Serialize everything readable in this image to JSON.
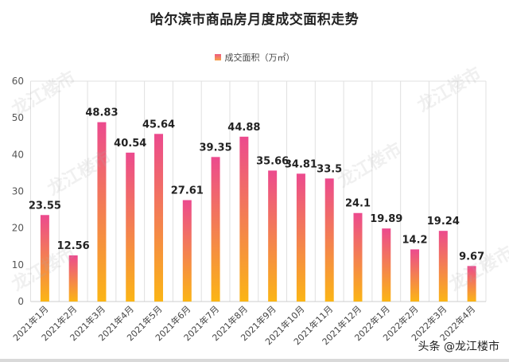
{
  "chart_data": {
    "type": "bar",
    "title": "哈尔滨市商品房月度成交面积走势",
    "legend": [
      "成交面积（万㎡）"
    ],
    "legend_position": "top",
    "xlabel": "",
    "ylabel": "",
    "ylim": [
      0,
      60
    ],
    "yticks": [
      0,
      10,
      20,
      30,
      40,
      50,
      60
    ],
    "grid": "vertical",
    "categories": [
      "2021年1月",
      "2021年2月",
      "2021年3月",
      "2021年4月",
      "2021年5月",
      "2021年6月",
      "2021年7月",
      "2021年8月",
      "2021年9月",
      "2021年10月",
      "2021年11月",
      "2021年12月",
      "2022年1月",
      "2022年2月",
      "2022年3月",
      "2022年4月"
    ],
    "series": [
      {
        "name": "成交面积（万㎡）",
        "values": [
          23.55,
          12.56,
          48.83,
          40.54,
          45.64,
          27.61,
          39.35,
          44.88,
          35.66,
          34.81,
          33.5,
          24.1,
          19.89,
          14.2,
          19.24,
          9.67
        ],
        "labels": [
          "23.55",
          "12.56",
          "48.83",
          "40.54",
          "45.64",
          "27.61",
          "39.35",
          "44.88",
          "35.66",
          "34.81",
          "33.5",
          "24.1",
          "19.89",
          "14.2",
          "19.24",
          "9.67"
        ]
      }
    ],
    "colors": {
      "bar_top": "#ec4a8e",
      "bar_bottom": "#fbb515",
      "grid": "#e0e0e0",
      "axis_text": "#555555"
    }
  },
  "watermark": "龙江楼市",
  "credit": "头条 @龙江楼市"
}
